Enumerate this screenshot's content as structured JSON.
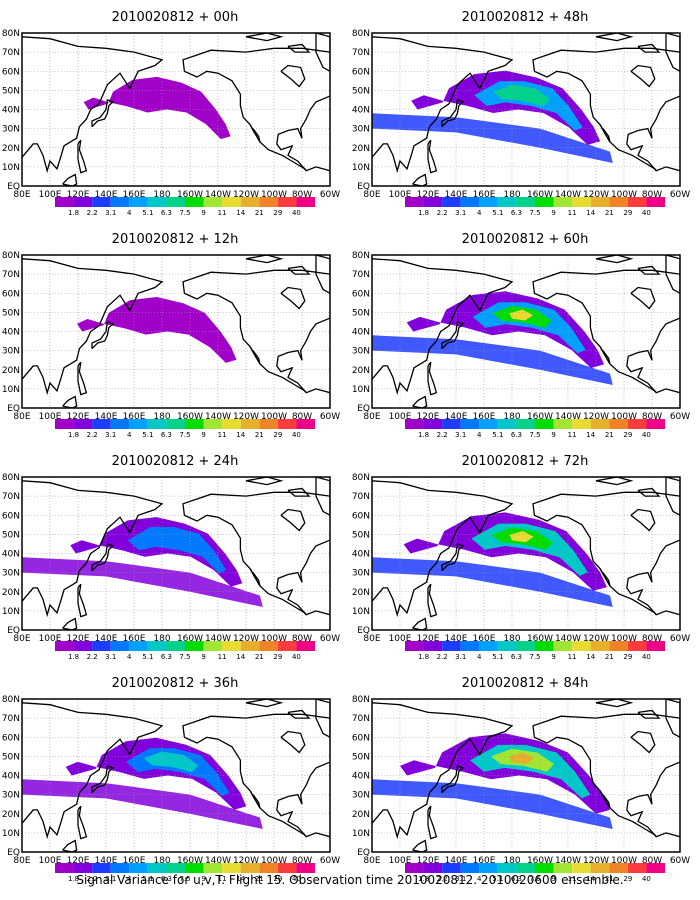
{
  "panels": [
    {
      "title": "2010020812 + 00h",
      "intensity": 0.25
    },
    {
      "title": "2010020812 + 48h",
      "intensity": 0.75
    },
    {
      "title": "2010020812 + 12h",
      "intensity": 0.4
    },
    {
      "title": "2010020812 + 60h",
      "intensity": 0.85
    },
    {
      "title": "2010020812 + 24h",
      "intensity": 0.55
    },
    {
      "title": "2010020812 + 72h",
      "intensity": 0.92
    },
    {
      "title": "2010020812 + 36h",
      "intensity": 0.65
    },
    {
      "title": "2010020812 + 84h",
      "intensity": 1.0
    }
  ],
  "lat_labels": [
    "80N",
    "70N",
    "60N",
    "50N",
    "40N",
    "30N",
    "20N",
    "10N",
    "EQ"
  ],
  "lon_labels": [
    "80E",
    "100E",
    "120E",
    "140E",
    "160E",
    "180",
    "160W",
    "140W",
    "120W",
    "100W",
    "80W",
    "60W"
  ],
  "colorbar": {
    "levels": [
      "1.8",
      "2.2",
      "3.1",
      "4",
      "5.1",
      "6.3",
      "7.5",
      "9",
      "11",
      "14",
      "21",
      "29",
      "40"
    ],
    "colors": [
      "#a000c8",
      "#8200dc",
      "#1e3cff",
      "#0078ff",
      "#00a0ff",
      "#00c8c8",
      "#00d28c",
      "#00dc00",
      "#a0e632",
      "#e6dc32",
      "#e6af2d",
      "#f08228",
      "#fa3c3c",
      "#f00082"
    ]
  },
  "caption": "Signal Variance for u,v,T. Flight 15. Observation time 2010020812. 2010020600 ensemble."
}
